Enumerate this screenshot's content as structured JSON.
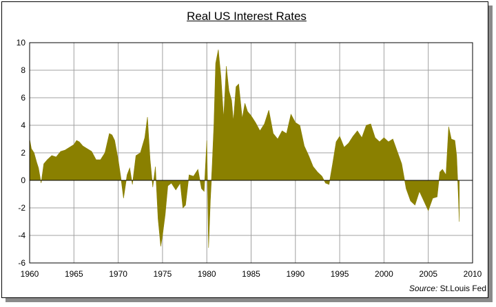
{
  "chart_data": {
    "type": "area",
    "title": "Real US Interest Rates",
    "source_label": "Source:",
    "source_value": "St.Louis Fed",
    "xlim": [
      1960,
      2010
    ],
    "ylim": [
      -6,
      10
    ],
    "x_ticks": [
      "1960",
      "1965",
      "1970",
      "1975",
      "1980",
      "1985",
      "1990",
      "1995",
      "2000",
      "2005",
      "2010"
    ],
    "y_ticks": [
      "10",
      "8",
      "6",
      "4",
      "2",
      "0",
      "-2",
      "-4",
      "-6"
    ],
    "grid": true,
    "fill_color": "#8a8000",
    "grid_color": "#a0a0a0",
    "series": [
      {
        "x": [
          1960.0,
          1960.2,
          1960.5,
          1960.8,
          1961.0,
          1961.3,
          1961.6,
          1962.0,
          1962.5,
          1963.0,
          1963.5,
          1964.0,
          1964.5,
          1965.0,
          1965.3,
          1965.6,
          1966.0,
          1966.5,
          1967.0,
          1967.5,
          1968.0,
          1968.5,
          1969.0,
          1969.3,
          1969.6,
          1970.0,
          1970.3,
          1970.6,
          1971.0,
          1971.3,
          1971.6,
          1972.0,
          1972.5,
          1973.0,
          1973.3,
          1973.6,
          1973.9,
          1974.2,
          1974.5,
          1974.8,
          1975.0,
          1975.3,
          1975.6,
          1976.0,
          1976.5,
          1977.0,
          1977.3,
          1977.6,
          1978.0,
          1978.5,
          1979.0,
          1979.4,
          1979.7,
          1980.0,
          1980.2,
          1980.4,
          1980.6,
          1980.8,
          1981.0,
          1981.3,
          1981.6,
          1981.9,
          1982.2,
          1982.5,
          1982.8,
          1983.0,
          1983.3,
          1983.6,
          1984.0,
          1984.3,
          1984.6,
          1985.0,
          1985.5,
          1986.0,
          1986.5,
          1987.0,
          1987.5,
          1988.0,
          1988.5,
          1989.0,
          1989.5,
          1990.0,
          1990.5,
          1991.0,
          1991.5,
          1992.0,
          1992.5,
          1993.0,
          1993.4,
          1993.8,
          1994.2,
          1994.6,
          1995.0,
          1995.5,
          1996.0,
          1996.5,
          1997.0,
          1997.5,
          1998.0,
          1998.5,
          1999.0,
          1999.5,
          2000.0,
          2000.5,
          2001.0,
          2001.5,
          2002.0,
          2002.5,
          2003.0,
          2003.5,
          2004.0,
          2004.5,
          2005.0,
          2005.5,
          2006.0,
          2006.3,
          2006.6,
          2007.0,
          2007.3,
          2007.6,
          2008.0,
          2008.2,
          2008.4
        ],
        "values": [
          3.0,
          2.3,
          2.0,
          1.3,
          0.9,
          -0.2,
          1.2,
          1.5,
          1.8,
          1.7,
          2.1,
          2.2,
          2.4,
          2.6,
          2.9,
          2.8,
          2.5,
          2.3,
          2.1,
          1.5,
          1.5,
          2.0,
          3.4,
          3.3,
          2.9,
          1.5,
          0.2,
          -1.3,
          0.4,
          0.9,
          -0.3,
          1.8,
          2.0,
          3.1,
          4.6,
          1.5,
          -0.5,
          1.0,
          -2.8,
          -4.8,
          -4.0,
          -2.5,
          -0.4,
          -0.2,
          -0.7,
          -0.2,
          -2.0,
          -1.8,
          0.4,
          0.3,
          0.8,
          -0.6,
          -0.8,
          2.9,
          -4.9,
          -1.5,
          1.0,
          4.0,
          8.5,
          9.5,
          7.5,
          4.5,
          8.3,
          6.5,
          5.8,
          4.3,
          6.8,
          7.0,
          4.5,
          5.6,
          5.0,
          4.7,
          4.2,
          3.6,
          4.1,
          5.1,
          3.4,
          3.0,
          3.6,
          3.4,
          4.8,
          4.2,
          4.0,
          2.5,
          1.8,
          1.0,
          0.6,
          0.3,
          -0.2,
          -0.3,
          1.2,
          2.8,
          3.2,
          2.4,
          2.7,
          3.2,
          3.6,
          3.1,
          4.0,
          4.1,
          3.1,
          2.8,
          3.1,
          2.8,
          3.0,
          2.1,
          1.2,
          -0.6,
          -1.5,
          -1.8,
          -0.8,
          -1.5,
          -2.2,
          -1.3,
          -1.2,
          0.6,
          0.8,
          0.4,
          3.9,
          3.0,
          2.9,
          1.8,
          -1.2
        ],
        "tail": {
          "x": [
            2008.4,
            2008.5
          ],
          "values": [
            -1.2,
            -3.0
          ]
        }
      }
    ]
  }
}
